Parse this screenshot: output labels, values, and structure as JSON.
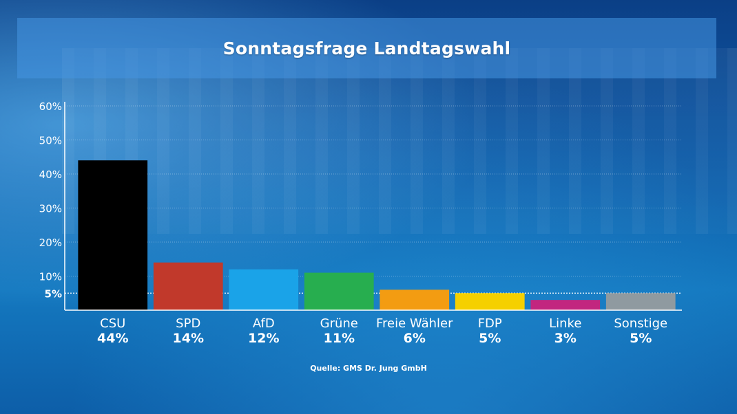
{
  "title": "Sonntagsfrage Landtagswahl",
  "source": "Quelle: GMS Dr. Jung GmbH",
  "chart_data": {
    "type": "bar",
    "title": "Sonntagsfrage Landtagswahl",
    "xlabel": "",
    "ylabel": "",
    "ylim": [
      0,
      60
    ],
    "yticks": [
      "60%",
      "50%",
      "40%",
      "30%",
      "20%",
      "10%"
    ],
    "reference_line": {
      "value": 5,
      "label": "5%"
    },
    "grid": true,
    "categories": [
      "CSU",
      "SPD",
      "AfD",
      "Grüne",
      "Freie Wähler",
      "FDP",
      "Linke",
      "Sonstige"
    ],
    "values": [
      44,
      14,
      12,
      11,
      6,
      5,
      3,
      5
    ],
    "value_labels": [
      "44%",
      "14%",
      "12%",
      "11%",
      "6%",
      "5%",
      "3%",
      "5%"
    ],
    "colors": [
      "#000000",
      "#c1392b",
      "#1aa3e8",
      "#27ae4f",
      "#f39c12",
      "#f5d000",
      "#c2267f",
      "#8f9aa0"
    ]
  }
}
